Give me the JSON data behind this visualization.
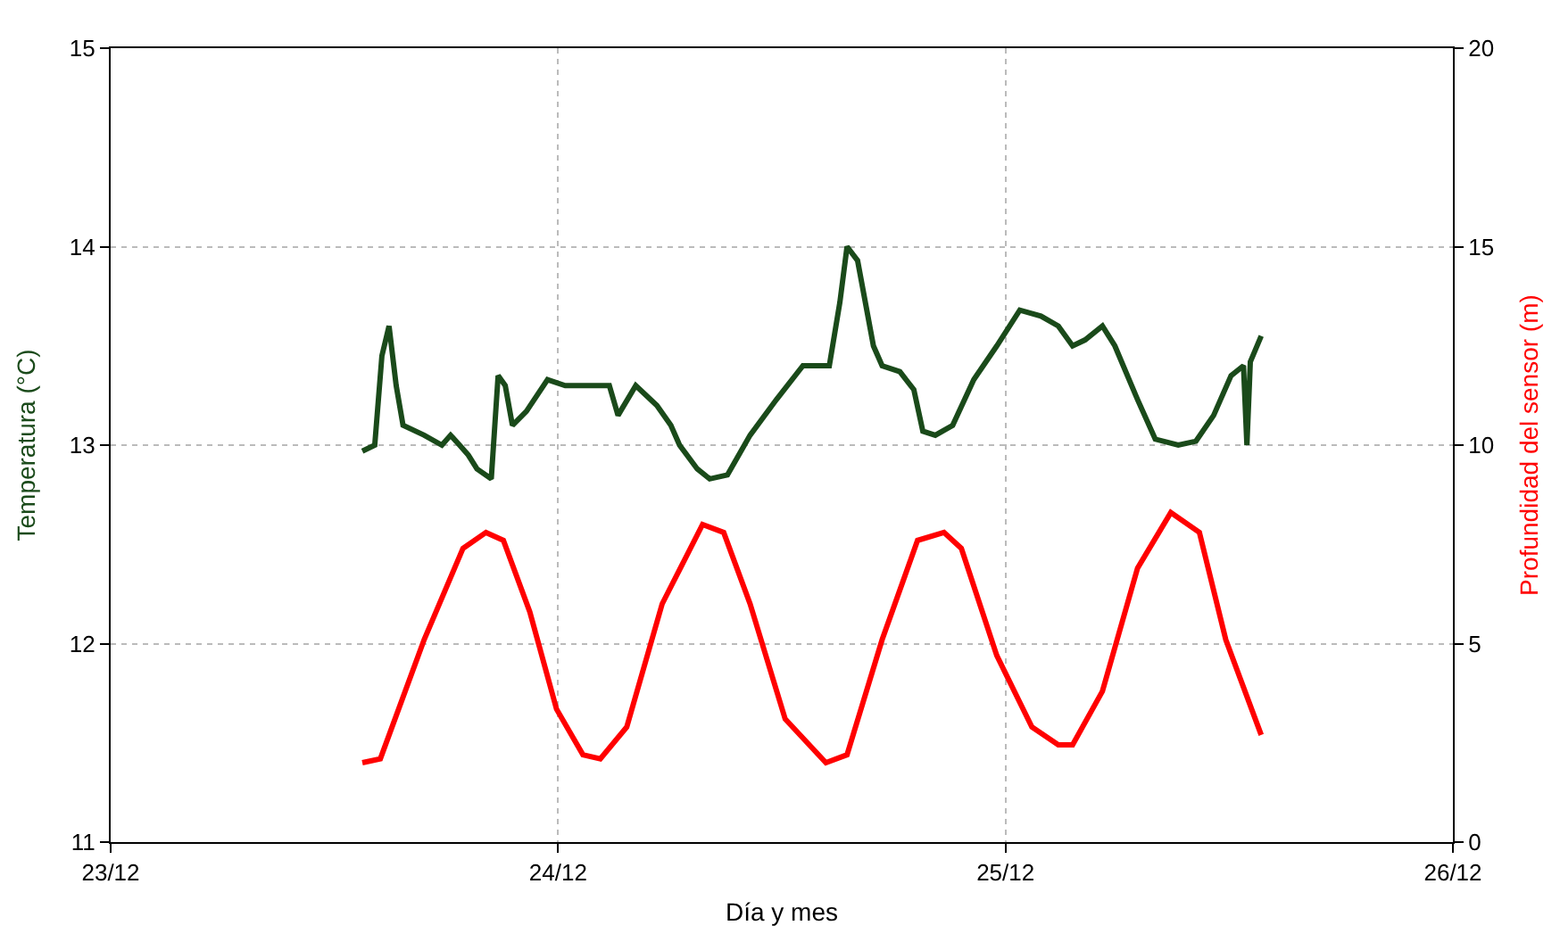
{
  "chart_data": {
    "type": "line",
    "xlabel": "Día y mes",
    "ylabel": "Temperatura (°C)",
    "y2label": "Profundidad del sensor (m)",
    "xlim": [
      "--12-23",
      "--12-26"
    ],
    "xticks": [
      {
        "value": "--12-23",
        "label": "23/12"
      },
      {
        "value": "--12-24",
        "label": "24/12"
      },
      {
        "value": "--12-25",
        "label": "25/12"
      },
      {
        "value": "--12-26",
        "label": "26/12"
      }
    ],
    "ylim": [
      11,
      15
    ],
    "yticks": [
      11,
      12,
      13,
      14,
      15
    ],
    "y2lim": [
      0,
      20
    ],
    "y2ticks": [
      0,
      5,
      10,
      15,
      20
    ],
    "grid": true,
    "marker": "none",
    "line_style": "solid",
    "series": [
      {
        "color": "#1a4a1a",
        "axis": "y",
        "x": [
          "--12-23T13:30",
          "--12-23T14:10",
          "--12-23T14:33",
          "--12-23T14:56",
          "--12-23T15:19",
          "--12-23T15:41",
          "--12-23T16:49",
          "--12-23T17:46",
          "--12-23T18:14",
          "--12-23T18:43",
          "--12-23T19:11",
          "--12-23T19:39",
          "--12-23T20:25",
          "--12-23T20:47",
          "--12-23T21:10",
          "--12-23T21:33",
          "--12-23T22:18",
          "--12-23T23:26",
          "--12-24T00:23",
          "--12-24T02:45",
          "--12-24T03:13",
          "--12-24T04:10",
          "--12-24T05:18",
          "--12-24T06:03",
          "--12-24T06:31",
          "--12-24T07:28",
          "--12-24T08:08",
          "--12-24T09:05",
          "--12-24T10:18",
          "--12-24T11:43",
          "--12-24T13:08",
          "--12-24T14:33",
          "--12-24T15:07",
          "--12-24T15:30",
          "--12-24T16:04",
          "--12-24T16:55",
          "--12-24T17:23",
          "--12-24T18:20",
          "--12-24T19:05",
          "--12-24T19:34",
          "--12-24T20:14",
          "--12-24T21:10",
          "--12-24T22:18",
          "--12-24T23:32",
          "--12-25T00:46",
          "--12-25T01:54",
          "--12-25T02:50",
          "--12-25T03:36",
          "--12-25T04:16",
          "--12-25T05:12",
          "--12-25T05:52",
          "--12-25T07:05",
          "--12-25T08:02",
          "--12-25T09:16",
          "--12-25T10:13",
          "--12-25T11:10",
          "--12-25T12:06",
          "--12-25T12:46",
          "--12-25T12:57",
          "--12-25T13:08",
          "--12-25T13:43"
        ],
        "values": [
          12.97,
          13.0,
          13.45,
          13.6,
          13.3,
          13.1,
          13.05,
          13.0,
          13.05,
          13.0,
          12.95,
          12.88,
          12.83,
          13.35,
          13.3,
          13.1,
          13.17,
          13.33,
          13.3,
          13.3,
          13.15,
          13.3,
          13.2,
          13.1,
          13.0,
          12.88,
          12.83,
          12.85,
          13.05,
          13.23,
          13.4,
          13.4,
          13.72,
          14.0,
          13.93,
          13.5,
          13.4,
          13.37,
          13.28,
          13.07,
          13.05,
          13.1,
          13.33,
          13.5,
          13.68,
          13.65,
          13.6,
          13.5,
          13.53,
          13.6,
          13.5,
          13.23,
          13.03,
          13.0,
          13.02,
          13.15,
          13.35,
          13.4,
          13.0,
          13.42,
          13.55
        ]
      },
      {
        "color": "#ff0000",
        "axis": "y2",
        "x": [
          "--12-23T13:30",
          "--12-23T14:28",
          "--12-23T16:49",
          "--12-23T18:54",
          "--12-23T20:08",
          "--12-23T21:04",
          "--12-23T22:29",
          "--12-23T23:55",
          "--12-24T01:20",
          "--12-24T02:16",
          "--12-24T03:41",
          "--12-24T05:35",
          "--12-24T07:45",
          "--12-24T08:53",
          "--12-24T10:18",
          "--12-24T12:11",
          "--12-24T14:22",
          "--12-24T15:30",
          "--12-24T17:23",
          "--12-24T19:17",
          "--12-24T20:42",
          "--12-24T21:38",
          "--12-24T23:32",
          "--12-25T01:25",
          "--12-25T02:50",
          "--12-25T03:36",
          "--12-25T05:12",
          "--12-25T07:05",
          "--12-25T08:52",
          "--12-25T10:24",
          "--12-25T11:49",
          "--12-25T13:43"
        ],
        "values": [
          2.0,
          2.1,
          5.1,
          7.4,
          7.8,
          7.6,
          5.8,
          3.35,
          2.2,
          2.1,
          2.9,
          6.0,
          8.0,
          7.8,
          6.0,
          3.1,
          2.0,
          2.2,
          5.1,
          7.6,
          7.8,
          7.4,
          4.7,
          2.9,
          2.45,
          2.45,
          3.8,
          6.9,
          8.3,
          7.8,
          5.1,
          2.7
        ]
      }
    ]
  }
}
